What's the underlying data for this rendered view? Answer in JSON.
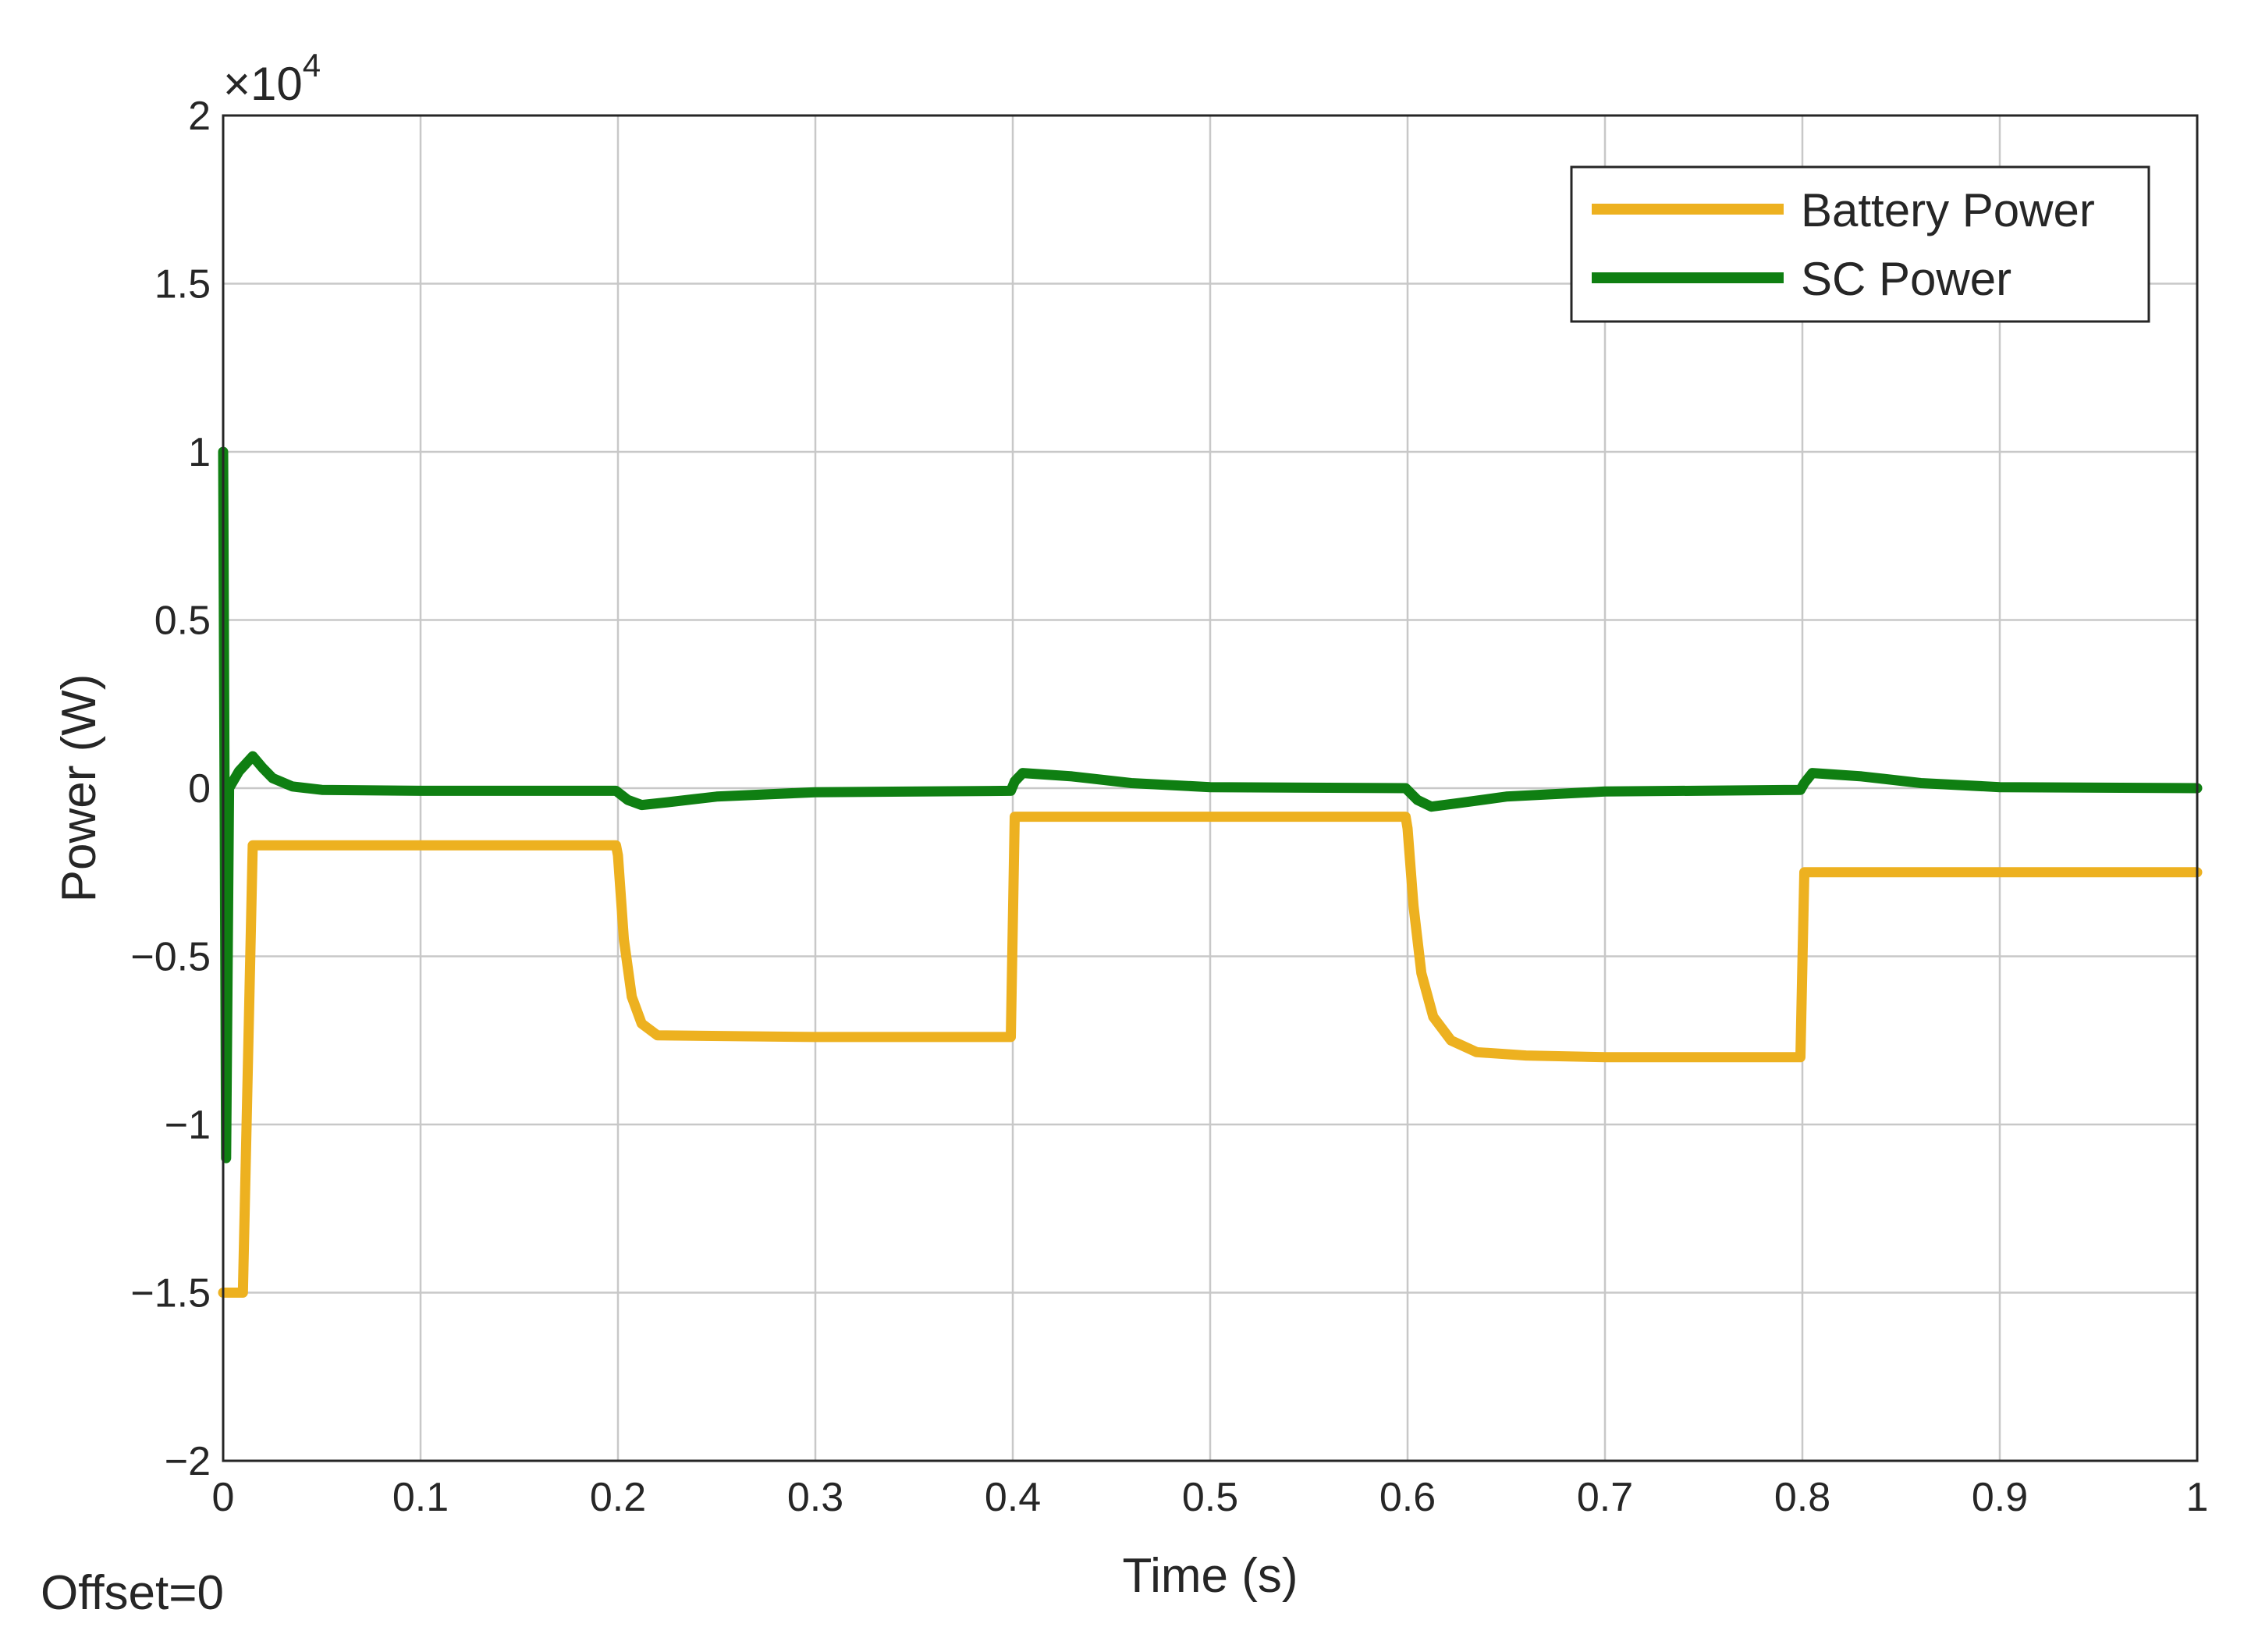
{
  "chart_data": {
    "type": "line",
    "xlabel": "Time (s)",
    "ylabel": "Power (W)",
    "xlim": [
      0,
      1
    ],
    "ylim": [
      -20000,
      20000
    ],
    "x_ticks": [
      "0",
      "0.1",
      "0.2",
      "0.3",
      "0.4",
      "0.5",
      "0.6",
      "0.7",
      "0.8",
      "0.9",
      "1"
    ],
    "y_ticks": [
      "−2",
      "−1.5",
      "−1",
      "−0.5",
      "0",
      "0.5",
      "1",
      "1.5",
      "2"
    ],
    "y_exponent": {
      "base": "×10",
      "power": "4"
    },
    "grid": true,
    "legend_position": "top-right",
    "annotation": "Offset=0",
    "series": [
      {
        "name": "Battery Power",
        "color": "#EDB120",
        "points": [
          [
            0,
            -15000
          ],
          [
            0.01,
            -15000
          ],
          [
            0.015,
            -1700
          ],
          [
            0.1,
            -1700
          ],
          [
            0.199,
            -1700
          ],
          [
            0.2,
            -2000
          ],
          [
            0.203,
            -4500
          ],
          [
            0.207,
            -6200
          ],
          [
            0.212,
            -7000
          ],
          [
            0.22,
            -7350
          ],
          [
            0.3,
            -7400
          ],
          [
            0.399,
            -7400
          ],
          [
            0.401,
            -850
          ],
          [
            0.5,
            -850
          ],
          [
            0.599,
            -850
          ],
          [
            0.6,
            -1200
          ],
          [
            0.603,
            -3500
          ],
          [
            0.607,
            -5500
          ],
          [
            0.613,
            -6800
          ],
          [
            0.622,
            -7500
          ],
          [
            0.635,
            -7850
          ],
          [
            0.66,
            -7950
          ],
          [
            0.7,
            -8000
          ],
          [
            0.799,
            -8000
          ],
          [
            0.801,
            -2500
          ],
          [
            0.9,
            -2500
          ],
          [
            1.0,
            -2500
          ]
        ]
      },
      {
        "name": "SC Power",
        "color": "#0F7F12",
        "points": [
          [
            0,
            10000
          ],
          [
            0.0015,
            -11000
          ],
          [
            0.003,
            0
          ],
          [
            0.008,
            500
          ],
          [
            0.015,
            950
          ],
          [
            0.02,
            600
          ],
          [
            0.025,
            300
          ],
          [
            0.035,
            50
          ],
          [
            0.05,
            -50
          ],
          [
            0.1,
            -80
          ],
          [
            0.199,
            -80
          ],
          [
            0.205,
            -350
          ],
          [
            0.212,
            -500
          ],
          [
            0.225,
            -420
          ],
          [
            0.25,
            -250
          ],
          [
            0.3,
            -120
          ],
          [
            0.399,
            -80
          ],
          [
            0.401,
            200
          ],
          [
            0.405,
            450
          ],
          [
            0.43,
            350
          ],
          [
            0.46,
            150
          ],
          [
            0.5,
            30
          ],
          [
            0.599,
            0
          ],
          [
            0.605,
            -350
          ],
          [
            0.612,
            -550
          ],
          [
            0.625,
            -450
          ],
          [
            0.65,
            -250
          ],
          [
            0.7,
            -100
          ],
          [
            0.799,
            -50
          ],
          [
            0.801,
            150
          ],
          [
            0.805,
            450
          ],
          [
            0.83,
            350
          ],
          [
            0.86,
            150
          ],
          [
            0.9,
            30
          ],
          [
            1.0,
            0
          ]
        ]
      }
    ]
  }
}
